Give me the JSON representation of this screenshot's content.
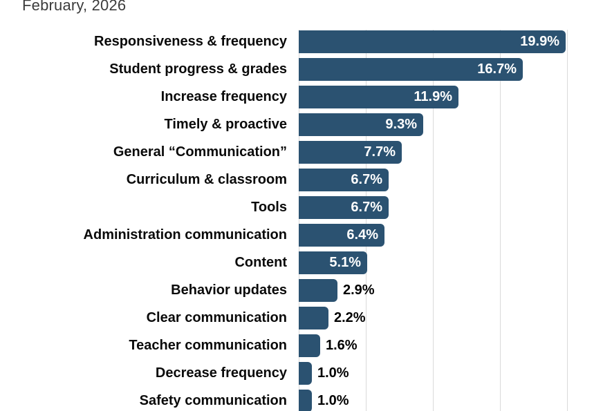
{
  "title": "February, 2026",
  "chart_data": {
    "type": "bar",
    "orientation": "horizontal",
    "title": "February, 2026",
    "xlabel": "",
    "ylabel": "",
    "xlim": [
      0,
      22.7
    ],
    "gridlines_pct": [
      0,
      5,
      10,
      15,
      20
    ],
    "grid": true,
    "legend": false,
    "value_suffix": "%",
    "categories": [
      "Responsiveness & frequency",
      "Student progress & grades",
      "Increase frequency",
      "Timely & proactive",
      "General “Communication”",
      "Curriculum & classroom",
      "Tools",
      "Administration communication",
      "Content",
      "Behavior updates",
      "Clear communication",
      "Teacher communication",
      "Decrease frequency",
      "Safety communication"
    ],
    "values": [
      19.9,
      16.7,
      11.9,
      9.3,
      7.7,
      6.7,
      6.7,
      6.4,
      5.1,
      2.9,
      2.2,
      1.6,
      1.0,
      1.0
    ],
    "colors": {
      "bar": "#2b5271",
      "inside_label": "#ffffff",
      "outside_label": "#000000",
      "gridline": "#d9d9d9",
      "title": "#3c3c3c",
      "category_label": "#0a0a0a"
    },
    "inside_label_min_value": 5.0
  }
}
